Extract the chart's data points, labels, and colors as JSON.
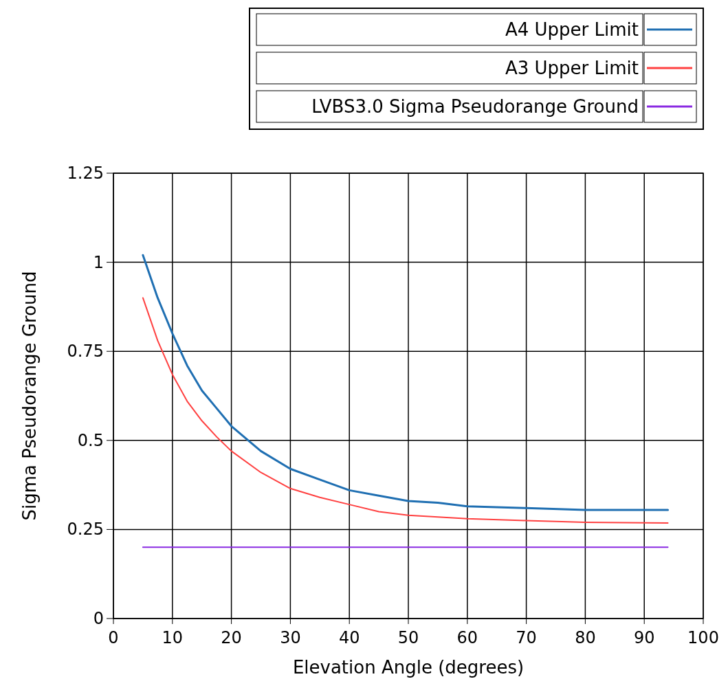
{
  "chart_data": {
    "type": "line",
    "xlabel": "Elevation Angle (degrees)",
    "ylabel": "Sigma Pseudorange Ground",
    "xlim": [
      0,
      100
    ],
    "xticks": [
      0,
      10,
      20,
      30,
      40,
      50,
      60,
      70,
      80,
      90,
      100
    ],
    "ylim": [
      0,
      1.25
    ],
    "yticks": [
      0,
      0.25,
      0.5,
      0.75,
      1,
      1.25
    ],
    "grid": true,
    "legend": "top right",
    "marker": "none",
    "line_style": "solid",
    "series": [
      {
        "name": "A4 Upper Limit",
        "color": "#1f6fb2",
        "x": [
          5,
          7.5,
          10,
          12.5,
          15,
          17.5,
          20,
          25,
          30,
          35,
          40,
          45,
          50,
          55,
          60,
          70,
          80,
          94
        ],
        "values": [
          1.02,
          0.9,
          0.8,
          0.71,
          0.64,
          0.59,
          0.54,
          0.47,
          0.42,
          0.39,
          0.36,
          0.345,
          0.33,
          0.325,
          0.315,
          0.31,
          0.305,
          0.305
        ]
      },
      {
        "name": "A3 Upper Limit",
        "color": "#ff4040",
        "x": [
          5,
          7.5,
          10,
          12.5,
          15,
          17.5,
          20,
          25,
          30,
          35,
          40,
          45,
          50,
          60,
          70,
          80,
          94
        ],
        "values": [
          0.9,
          0.78,
          0.685,
          0.61,
          0.555,
          0.51,
          0.47,
          0.41,
          0.365,
          0.34,
          0.32,
          0.3,
          0.29,
          0.28,
          0.275,
          0.27,
          0.268
        ]
      },
      {
        "name": "LVBS3.0 Sigma Pseudorange Ground",
        "color": "#8a2be2",
        "x": [
          5,
          94
        ],
        "values": [
          0.2,
          0.2
        ]
      }
    ]
  }
}
